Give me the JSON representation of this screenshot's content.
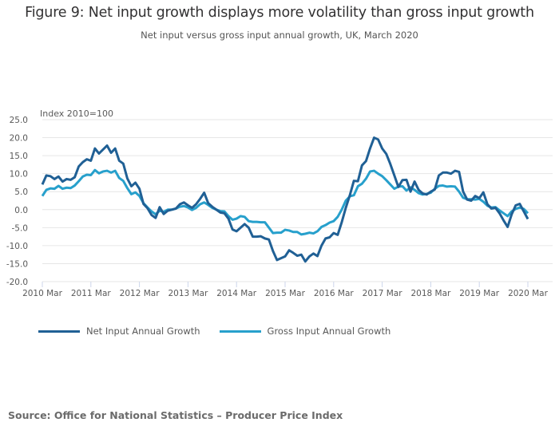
{
  "title": "Figure 9: Net input growth displays more volatility than gross input growth",
  "subtitle": "Net input versus gross input annual growth, UK, March 2020",
  "source": "Source: Office for National Statistics – Producer Price Index",
  "chart_data": {
    "type": "line",
    "title": "Figure 9: Net input growth displays more volatility than gross input growth",
    "subtitle": "Net input versus gross input annual growth, UK, March 2020",
    "xlabel": "",
    "ylabel": "Index 2010=100",
    "ylim": [
      -20,
      25
    ],
    "yticks": [
      25.0,
      20.0,
      15.0,
      10.0,
      5.0,
      0.0,
      -5.0,
      -10.0,
      -15.0,
      -20.0
    ],
    "ytick_labels": [
      "25.0",
      "20.0",
      "15.0",
      "10.0",
      "5.0",
      "0.0",
      "-5.0",
      "-10.0",
      "-15.0",
      "-20.0"
    ],
    "xtick_labels": [
      "2010 Mar",
      "2011 Mar",
      "2012 Mar",
      "2013 Mar",
      "2014 Mar",
      "2015 Mar",
      "2016 Mar",
      "2017 Mar",
      "2018 Mar",
      "2019 Mar",
      "2020 Mar"
    ],
    "x_start": "2010 Mar",
    "x_end": "2020 Mar",
    "x_frequency": "monthly",
    "grid": true,
    "legend_position": "bottom-left",
    "colors": {
      "net": "#206095",
      "gross": "#27a0cc"
    },
    "series": [
      {
        "name": "Net Input Annual Growth",
        "color": "#206095",
        "values": [
          7.0,
          9.5,
          9.3,
          8.5,
          9.2,
          7.8,
          8.5,
          8.3,
          9.0,
          12.0,
          13.2,
          14.0,
          13.6,
          17.0,
          15.6,
          16.7,
          17.8,
          15.8,
          17.0,
          13.6,
          12.8,
          8.7,
          6.5,
          7.5,
          5.8,
          1.6,
          0.4,
          -1.5,
          -2.3,
          0.7,
          -1.2,
          -0.3,
          0.0,
          0.3,
          1.5,
          2.0,
          1.2,
          0.5,
          1.5,
          3.0,
          4.7,
          1.8,
          0.8,
          0.0,
          -0.8,
          -1.0,
          -2.5,
          -5.5,
          -6.0,
          -5.0,
          -4.0,
          -5.0,
          -7.5,
          -7.5,
          -7.4,
          -8.0,
          -8.3,
          -11.5,
          -14.0,
          -13.5,
          -13.0,
          -11.3,
          -12.0,
          -12.8,
          -12.5,
          -14.4,
          -13.0,
          -12.2,
          -12.9,
          -10.0,
          -8.0,
          -7.7,
          -6.5,
          -7.0,
          -3.5,
          0.5,
          4.0,
          8.0,
          7.9,
          12.3,
          13.5,
          17.0,
          20.0,
          19.5,
          17.0,
          15.5,
          12.7,
          9.5,
          6.3,
          8.2,
          8.3,
          5.0,
          7.8,
          5.5,
          4.5,
          4.2,
          5.0,
          5.6,
          9.5,
          10.3,
          10.3,
          10.0,
          10.8,
          10.5,
          5.0,
          2.8,
          2.5,
          3.8,
          3.2,
          4.8,
          1.5,
          0.3,
          0.5,
          -1.0,
          -3.0,
          -4.8,
          -1.3,
          1.2,
          1.6,
          -0.5,
          -2.6
        ]
      },
      {
        "name": "Gross Input Annual Growth",
        "color": "#27a0cc",
        "values": [
          3.8,
          5.5,
          5.9,
          5.8,
          6.6,
          5.8,
          6.1,
          6.0,
          6.7,
          7.9,
          9.2,
          9.7,
          9.6,
          11.0,
          10.1,
          10.6,
          10.8,
          10.3,
          10.8,
          8.8,
          8.0,
          6.0,
          4.3,
          4.8,
          3.8,
          1.8,
          0.6,
          -0.5,
          -1.3,
          -0.3,
          -0.6,
          0.0,
          0.0,
          0.3,
          0.8,
          1.0,
          0.6,
          -0.1,
          0.5,
          1.5,
          2.0,
          1.3,
          0.5,
          0.0,
          -0.4,
          -0.5,
          -1.8,
          -2.8,
          -2.5,
          -1.8,
          -2.0,
          -3.2,
          -3.4,
          -3.4,
          -3.5,
          -3.5,
          -5.0,
          -6.5,
          -6.4,
          -6.4,
          -5.6,
          -5.8,
          -6.2,
          -6.2,
          -6.9,
          -6.7,
          -6.4,
          -6.6,
          -6.0,
          -4.8,
          -4.3,
          -3.6,
          -3.2,
          -2.0,
          0.0,
          2.5,
          3.7,
          4.0,
          6.5,
          7.2,
          8.6,
          10.6,
          10.8,
          10.0,
          9.3,
          8.2,
          7.0,
          5.8,
          6.4,
          6.5,
          5.3,
          6.2,
          5.5,
          4.6,
          4.2,
          4.4,
          4.7,
          5.8,
          6.6,
          6.7,
          6.4,
          6.5,
          6.4,
          5.0,
          3.3,
          2.9,
          2.9,
          2.8,
          3.0,
          2.2,
          1.1,
          0.6,
          0.7,
          -0.2,
          -1.0,
          -1.8,
          -0.5,
          0.2,
          0.6,
          0.2,
          -1.0
        ]
      }
    ]
  },
  "legend": {
    "items": [
      {
        "label": "Net Input Annual Growth",
        "color": "#206095"
      },
      {
        "label": "Gross Input Annual Growth",
        "color": "#27a0cc"
      }
    ]
  }
}
